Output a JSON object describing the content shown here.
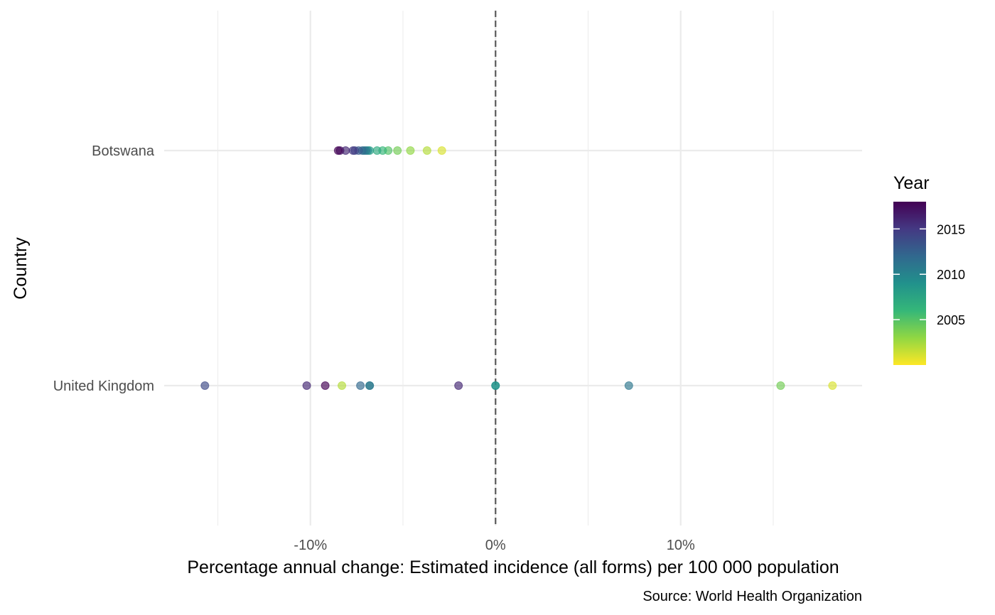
{
  "chart_data": {
    "type": "scatter",
    "xlabel": "Percentage annual change: Estimated incidence (all forms) per 100 000 population",
    "ylabel": "Country",
    "caption": "Source: World Health Organization",
    "categories": [
      "Botswana",
      "United Kingdom"
    ],
    "xlim": [
      -17.9,
      19.8
    ],
    "x_major_ticks": [
      -10,
      0,
      10
    ],
    "x_tick_labels": [
      "-10%",
      "0%",
      "10%"
    ],
    "x_minor_ticks": [
      -15,
      -5,
      5,
      15
    ],
    "reference_line": {
      "x": 0,
      "style": "dashed"
    },
    "grid": true,
    "legend": {
      "title": "Year",
      "placement": "right",
      "type": "colorbar",
      "range": [
        2000,
        2018
      ],
      "breaks": [
        2005,
        2010,
        2015
      ],
      "labels": [
        "2005",
        "2010",
        "2015"
      ],
      "colors": [
        "#fde725",
        "#90d743",
        "#35b779",
        "#21918c",
        "#31688e",
        "#443983",
        "#440154"
      ]
    },
    "points": [
      {
        "country": "Botswana",
        "x": -2.9,
        "year": 2001
      },
      {
        "country": "Botswana",
        "x": -3.7,
        "year": 2002
      },
      {
        "country": "Botswana",
        "x": -4.6,
        "year": 2003
      },
      {
        "country": "Botswana",
        "x": -5.3,
        "year": 2004
      },
      {
        "country": "Botswana",
        "x": -5.8,
        "year": 2005
      },
      {
        "country": "Botswana",
        "x": -6.1,
        "year": 2006
      },
      {
        "country": "Botswana",
        "x": -6.4,
        "year": 2007
      },
      {
        "country": "Botswana",
        "x": -6.8,
        "year": 2008
      },
      {
        "country": "Botswana",
        "x": -6.9,
        "year": 2009
      },
      {
        "country": "Botswana",
        "x": -7.1,
        "year": 2010
      },
      {
        "country": "Botswana",
        "x": -7.0,
        "year": 2011
      },
      {
        "country": "Botswana",
        "x": -7.2,
        "year": 2012
      },
      {
        "country": "Botswana",
        "x": -7.4,
        "year": 2013
      },
      {
        "country": "Botswana",
        "x": -7.6,
        "year": 2014
      },
      {
        "country": "Botswana",
        "x": -7.7,
        "year": 2015
      },
      {
        "country": "Botswana",
        "x": -8.1,
        "year": 2016
      },
      {
        "country": "Botswana",
        "x": -8.4,
        "year": 2017
      },
      {
        "country": "Botswana",
        "x": -8.5,
        "year": 2018
      },
      {
        "country": "United Kingdom",
        "x": 18.2,
        "year": 2001
      },
      {
        "country": "United Kingdom",
        "x": -8.3,
        "year": 2002
      },
      {
        "country": "United Kingdom",
        "x": 15.4,
        "year": 2004
      },
      {
        "country": "United Kingdom",
        "x": 0.0,
        "year": 2008
      },
      {
        "country": "United Kingdom",
        "x": 0.0,
        "year": 2009
      },
      {
        "country": "United Kingdom",
        "x": -6.8,
        "year": 2010
      },
      {
        "country": "United Kingdom",
        "x": -6.8,
        "year": 2011
      },
      {
        "country": "United Kingdom",
        "x": 7.2,
        "year": 2011
      },
      {
        "country": "United Kingdom",
        "x": -7.3,
        "year": 2012
      },
      {
        "country": "United Kingdom",
        "x": -15.7,
        "year": 2014
      },
      {
        "country": "United Kingdom",
        "x": -2.0,
        "year": 2016
      },
      {
        "country": "United Kingdom",
        "x": -10.2,
        "year": 2016
      },
      {
        "country": "United Kingdom",
        "x": -9.2,
        "year": 2018
      }
    ]
  }
}
